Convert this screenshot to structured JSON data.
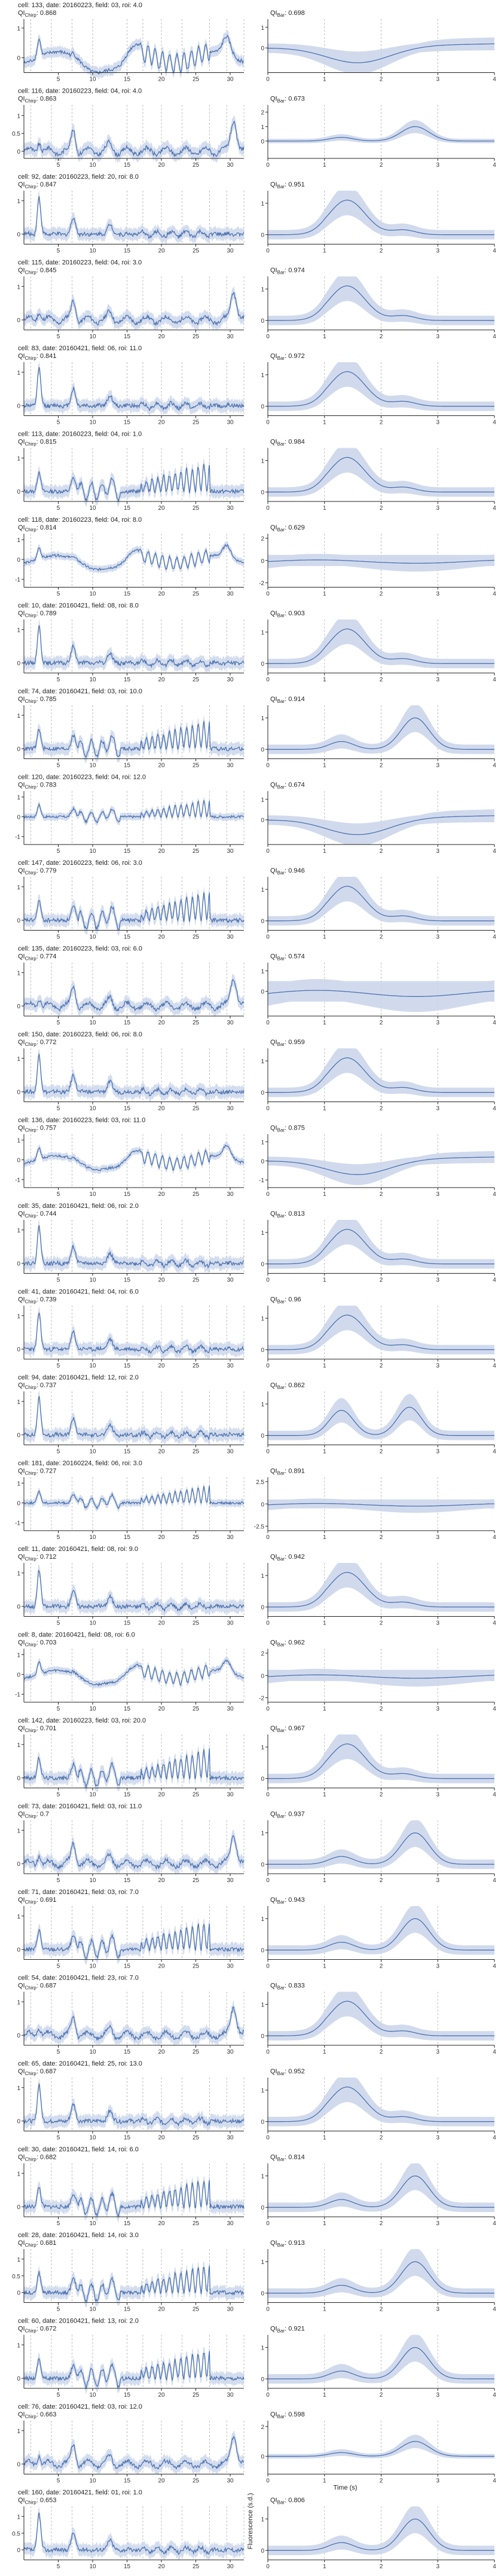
{
  "figure": {
    "right_axis_xlabel": "Time (s)",
    "right_axis_ylabel": "Fluorescence (s.d.)",
    "colors": {
      "line": "#4c72b0",
      "band": "#c9d4ea",
      "axis": "#222222",
      "dashed": "#b9b9b9"
    },
    "left_xticks": [
      5,
      10,
      15,
      20,
      25,
      30
    ],
    "left_xlim": [
      0,
      32
    ],
    "right_xticks": [
      0,
      1,
      2,
      3,
      4
    ],
    "right_xlim": [
      0,
      4
    ],
    "stim_lines": [
      1,
      4,
      7,
      10,
      15,
      17.3,
      20,
      23,
      27,
      29.5,
      32
    ],
    "qi_prefix_left": "QI",
    "qi_prefix_right": "QI"
  },
  "chart_data": [
    {
      "type": "line",
      "cell": "cell: 133, date: 20160223, field: 03, roi: 4.0",
      "qi_chirp": "0.868",
      "qi_bar": "0.698",
      "left_yticks": [
        1,
        0
      ],
      "left_ylim": [
        -0.5,
        1.3
      ],
      "right_yticks": [
        1,
        0
      ],
      "right_ylim": [
        -1.2,
        1.4
      ],
      "left_shape": "slow",
      "right_shape": "dip"
    },
    {
      "type": "line",
      "cell": "cell: 116, date: 20160223, field: 04, roi: 4.0",
      "qi_chirp": "0.863",
      "qi_bar": "0.673",
      "left_yticks": [
        1,
        0.5,
        0
      ],
      "left_ylim": [
        -0.2,
        1.3
      ],
      "right_yticks": [
        2,
        1,
        0
      ],
      "right_ylim": [
        -1.2,
        2.5
      ],
      "left_shape": "sparse",
      "right_shape": "late"
    },
    {
      "type": "line",
      "cell": "cell: 92, date: 20160223, field: 20, roi: 8.0",
      "qi_chirp": "0.847",
      "qi_bar": "0.951",
      "left_yticks": [
        1,
        0
      ],
      "left_ylim": [
        -0.3,
        1.3
      ],
      "right_yticks": [
        1,
        0
      ],
      "right_ylim": [
        -0.3,
        1.4
      ],
      "left_shape": "onset",
      "right_shape": "peak"
    },
    {
      "type": "line",
      "cell": "cell: 115, date: 20160223, field: 04, roi: 3.0",
      "qi_chirp": "0.845",
      "qi_bar": "0.974",
      "left_yticks": [
        1,
        0
      ],
      "left_ylim": [
        -0.3,
        1.3
      ],
      "right_yticks": [
        1,
        0
      ],
      "right_ylim": [
        -0.3,
        1.4
      ],
      "left_shape": "sparse",
      "right_shape": "peak"
    },
    {
      "type": "line",
      "cell": "cell: 83, date: 20160421, field: 06, roi: 11.0",
      "qi_chirp": "0.841",
      "qi_bar": "0.972",
      "left_yticks": [
        1,
        0
      ],
      "left_ylim": [
        -0.3,
        1.3
      ],
      "right_yticks": [
        1,
        0
      ],
      "right_ylim": [
        -0.3,
        1.4
      ],
      "left_shape": "onset",
      "right_shape": "peak"
    },
    {
      "type": "line",
      "cell": "cell: 113, date: 20160223, field: 04, roi: 1.0",
      "qi_chirp": "0.815",
      "qi_bar": "0.984",
      "left_yticks": [
        1,
        0
      ],
      "left_ylim": [
        -0.3,
        1.3
      ],
      "right_yticks": [
        1,
        0
      ],
      "right_ylim": [
        -0.3,
        1.4
      ],
      "left_shape": "oscillate",
      "right_shape": "peak"
    },
    {
      "type": "line",
      "cell": "cell: 118, date: 20160223, field: 04, roi: 8.0",
      "qi_chirp": "0.814",
      "qi_bar": "0.629",
      "left_yticks": [
        1,
        0,
        -1
      ],
      "left_ylim": [
        -1.4,
        1.3
      ],
      "right_yticks": [
        2,
        0,
        -2
      ],
      "right_ylim": [
        -2.4,
        2.4
      ],
      "left_shape": "slow",
      "right_shape": "flat"
    },
    {
      "type": "line",
      "cell": "cell: 10, date: 20160421, field: 08, roi: 8.0",
      "qi_chirp": "0.789",
      "qi_bar": "0.903",
      "left_yticks": [
        1,
        0
      ],
      "left_ylim": [
        -0.3,
        1.3
      ],
      "right_yticks": [
        1,
        0
      ],
      "right_ylim": [
        -0.3,
        1.4
      ],
      "left_shape": "onset",
      "right_shape": "peak"
    },
    {
      "type": "line",
      "cell": "cell: 74, date: 20160421, field: 03, roi: 10.0",
      "qi_chirp": "0.785",
      "qi_bar": "0.914",
      "left_yticks": [
        1,
        0
      ],
      "left_ylim": [
        -0.3,
        1.3
      ],
      "right_yticks": [
        1,
        0
      ],
      "right_ylim": [
        -0.3,
        1.4
      ],
      "left_shape": "oscillate",
      "right_shape": "late"
    },
    {
      "type": "line",
      "cell": "cell: 120, date: 20160223, field: 04, roi: 12.0",
      "qi_chirp": "0.783",
      "qi_bar": "0.674",
      "left_yticks": [
        1,
        0,
        -1
      ],
      "left_ylim": [
        -1.4,
        1.3
      ],
      "right_yticks": [
        1,
        0
      ],
      "right_ylim": [
        -1.2,
        1.4
      ],
      "left_shape": "oscillate",
      "right_shape": "dip"
    },
    {
      "type": "line",
      "cell": "cell: 147, date: 20160223, field: 06, roi: 3.0",
      "qi_chirp": "0.779",
      "qi_bar": "0.946",
      "left_yticks": [
        1,
        0
      ],
      "left_ylim": [
        -0.3,
        1.3
      ],
      "right_yticks": [
        1,
        0
      ],
      "right_ylim": [
        -0.3,
        1.4
      ],
      "left_shape": "oscillate",
      "right_shape": "peak"
    },
    {
      "type": "line",
      "cell": "cell: 135, date: 20160223, field: 03, roi: 6.0",
      "qi_chirp": "0.774",
      "qi_bar": "0.574",
      "left_yticks": [
        1,
        0
      ],
      "left_ylim": [
        -0.3,
        1.3
      ],
      "right_yticks": [
        1,
        0
      ],
      "right_ylim": [
        -1.2,
        1.4
      ],
      "left_shape": "sparse",
      "right_shape": "flat"
    },
    {
      "type": "line",
      "cell": "cell: 150, date: 20160223, field: 06, roi: 8.0",
      "qi_chirp": "0.772",
      "qi_bar": "0.959",
      "left_yticks": [
        1,
        0
      ],
      "left_ylim": [
        -0.3,
        1.3
      ],
      "right_yticks": [
        1,
        0
      ],
      "right_ylim": [
        -0.3,
        1.4
      ],
      "left_shape": "onset",
      "right_shape": "peak"
    },
    {
      "type": "line",
      "cell": "cell: 136, date: 20160223, field: 03, roi: 11.0",
      "qi_chirp": "0.757",
      "qi_bar": "0.875",
      "left_yticks": [
        1,
        0,
        -1
      ],
      "left_ylim": [
        -1.4,
        1.3
      ],
      "right_yticks": [
        1,
        0,
        -1
      ],
      "right_ylim": [
        -1.4,
        1.4
      ],
      "left_shape": "slow",
      "right_shape": "dip"
    },
    {
      "type": "line",
      "cell": "cell: 35, date: 20160421, field: 06, roi: 2.0",
      "qi_chirp": "0.744",
      "qi_bar": "0.813",
      "left_yticks": [
        1,
        0
      ],
      "left_ylim": [
        -0.3,
        1.3
      ],
      "right_yticks": [
        1,
        0
      ],
      "right_ylim": [
        -0.3,
        1.4
      ],
      "left_shape": "onset",
      "right_shape": "peak"
    },
    {
      "type": "line",
      "cell": "cell: 41, date: 20160421, field: 04, roi: 6.0",
      "qi_chirp": "0.739",
      "qi_bar": "0.96",
      "left_yticks": [
        1,
        0
      ],
      "left_ylim": [
        -0.3,
        1.3
      ],
      "right_yticks": [
        1,
        0
      ],
      "right_ylim": [
        -0.3,
        1.4
      ],
      "left_shape": "onset",
      "right_shape": "peak"
    },
    {
      "type": "line",
      "cell": "cell: 94, date: 20160421, field: 12, roi: 2.0",
      "qi_chirp": "0.737",
      "qi_bar": "0.862",
      "left_yticks": [
        1,
        0
      ],
      "left_ylim": [
        -0.3,
        1.3
      ],
      "right_yticks": [
        1,
        0
      ],
      "right_ylim": [
        -0.3,
        1.4
      ],
      "left_shape": "onset",
      "right_shape": "double"
    },
    {
      "type": "line",
      "cell": "cell: 181, date: 20160224, field: 06, roi: 3.0",
      "qi_chirp": "0.727",
      "qi_bar": "0.891",
      "left_yticks": [
        1,
        0,
        -1
      ],
      "left_ylim": [
        -1.4,
        1.3
      ],
      "right_yticks": [
        2.5,
        0,
        -2.5
      ],
      "right_ylim": [
        -3,
        3
      ],
      "left_shape": "oscillate",
      "right_shape": "flat"
    },
    {
      "type": "line",
      "cell": "cell: 11, date: 20160421, field: 08, roi: 9.0",
      "qi_chirp": "0.712",
      "qi_bar": "0.942",
      "left_yticks": [
        1,
        0
      ],
      "left_ylim": [
        -0.3,
        1.3
      ],
      "right_yticks": [
        1,
        0
      ],
      "right_ylim": [
        -0.3,
        1.4
      ],
      "left_shape": "onset",
      "right_shape": "peak"
    },
    {
      "type": "line",
      "cell": "cell: 8, date: 20160421, field: 08, roi: 6.0",
      "qi_chirp": "0.703",
      "qi_bar": "0.962",
      "left_yticks": [
        1,
        0,
        -1
      ],
      "left_ylim": [
        -1.4,
        1.3
      ],
      "right_yticks": [
        2,
        0,
        -2
      ],
      "right_ylim": [
        -2.4,
        2.4
      ],
      "left_shape": "slow",
      "right_shape": "flat"
    },
    {
      "type": "line",
      "cell": "cell: 142, date: 20160223, field: 03, roi: 20.0",
      "qi_chirp": "0.701",
      "qi_bar": "0.967",
      "left_yticks": [
        1,
        0
      ],
      "left_ylim": [
        -0.3,
        1.3
      ],
      "right_yticks": [
        1,
        0
      ],
      "right_ylim": [
        -0.3,
        1.4
      ],
      "left_shape": "oscillate",
      "right_shape": "peak"
    },
    {
      "type": "line",
      "cell": "cell: 73, date: 20160421, field: 03, roi: 11.0",
      "qi_chirp": "0.7",
      "qi_bar": "0.937",
      "left_yticks": [
        1,
        0
      ],
      "left_ylim": [
        -0.3,
        1.3
      ],
      "right_yticks": [
        1,
        0
      ],
      "right_ylim": [
        -0.3,
        1.4
      ],
      "left_shape": "sparse",
      "right_shape": "late"
    },
    {
      "type": "line",
      "cell": "cell: 71, date: 20160421, field: 03, roi: 7.0",
      "qi_chirp": "0.691",
      "qi_bar": "0.943",
      "left_yticks": [
        1,
        0
      ],
      "left_ylim": [
        -0.3,
        1.3
      ],
      "right_yticks": [
        1,
        0
      ],
      "right_ylim": [
        -0.3,
        1.4
      ],
      "left_shape": "oscillate",
      "right_shape": "late"
    },
    {
      "type": "line",
      "cell": "cell: 54, date: 20160421, field: 23, roi: 7.0",
      "qi_chirp": "0.687",
      "qi_bar": "0.833",
      "left_yticks": [
        1,
        0
      ],
      "left_ylim": [
        -0.3,
        1.3
      ],
      "right_yticks": [
        1,
        0
      ],
      "right_ylim": [
        -0.3,
        1.4
      ],
      "left_shape": "sparse",
      "right_shape": "peak"
    },
    {
      "type": "line",
      "cell": "cell: 65, date: 20160421, field: 25, roi: 13.0",
      "qi_chirp": "0.687",
      "qi_bar": "0.952",
      "left_yticks": [
        1,
        0
      ],
      "left_ylim": [
        -0.3,
        1.3
      ],
      "right_yticks": [
        1,
        0
      ],
      "right_ylim": [
        -0.3,
        1.4
      ],
      "left_shape": "onset",
      "right_shape": "peak"
    },
    {
      "type": "line",
      "cell": "cell: 30, date: 20160421, field: 14, roi: 6.0",
      "qi_chirp": "0.682",
      "qi_bar": "0.814",
      "left_yticks": [
        1,
        0
      ],
      "left_ylim": [
        -0.3,
        1.3
      ],
      "right_yticks": [
        1,
        0
      ],
      "right_ylim": [
        -0.3,
        1.4
      ],
      "left_shape": "oscillate",
      "right_shape": "late"
    },
    {
      "type": "line",
      "cell": "cell: 28, date: 20160421, field: 14, roi: 3.0",
      "qi_chirp": "0.681",
      "qi_bar": "0.913",
      "left_yticks": [
        1,
        0.5,
        0
      ],
      "left_ylim": [
        -0.3,
        1.3
      ],
      "right_yticks": [
        1,
        0
      ],
      "right_ylim": [
        -0.3,
        1.4
      ],
      "left_shape": "oscillate",
      "right_shape": "late"
    },
    {
      "type": "line",
      "cell": "cell: 60, date: 20160421, field: 13, roi: 2.0",
      "qi_chirp": "0.672",
      "qi_bar": "0.921",
      "left_yticks": [
        1,
        0
      ],
      "left_ylim": [
        -0.3,
        1.3
      ],
      "right_yticks": [
        1,
        0
      ],
      "right_ylim": [
        -0.3,
        1.4
      ],
      "left_shape": "oscillate",
      "right_shape": "late"
    },
    {
      "type": "line",
      "cell": "cell: 76, date: 20160421, field: 03, roi: 12.0",
      "qi_chirp": "0.663",
      "qi_bar": "0.598",
      "left_yticks": [
        1,
        0
      ],
      "left_ylim": [
        -0.3,
        1.3
      ],
      "right_yticks": [
        2,
        0
      ],
      "right_ylim": [
        -1.2,
        2.4
      ],
      "left_shape": "sparse",
      "right_shape": "late"
    },
    {
      "type": "line",
      "cell": "cell: 160, date: 20160421, field: 01, roi: 1.0",
      "qi_chirp": "0.653",
      "qi_bar": "0.806",
      "left_yticks": [
        1,
        0.5,
        0
      ],
      "left_ylim": [
        -0.3,
        1.3
      ],
      "right_yticks": [
        1,
        0
      ],
      "right_ylim": [
        -0.3,
        1.4
      ],
      "left_shape": "onset",
      "right_shape": "late"
    }
  ]
}
